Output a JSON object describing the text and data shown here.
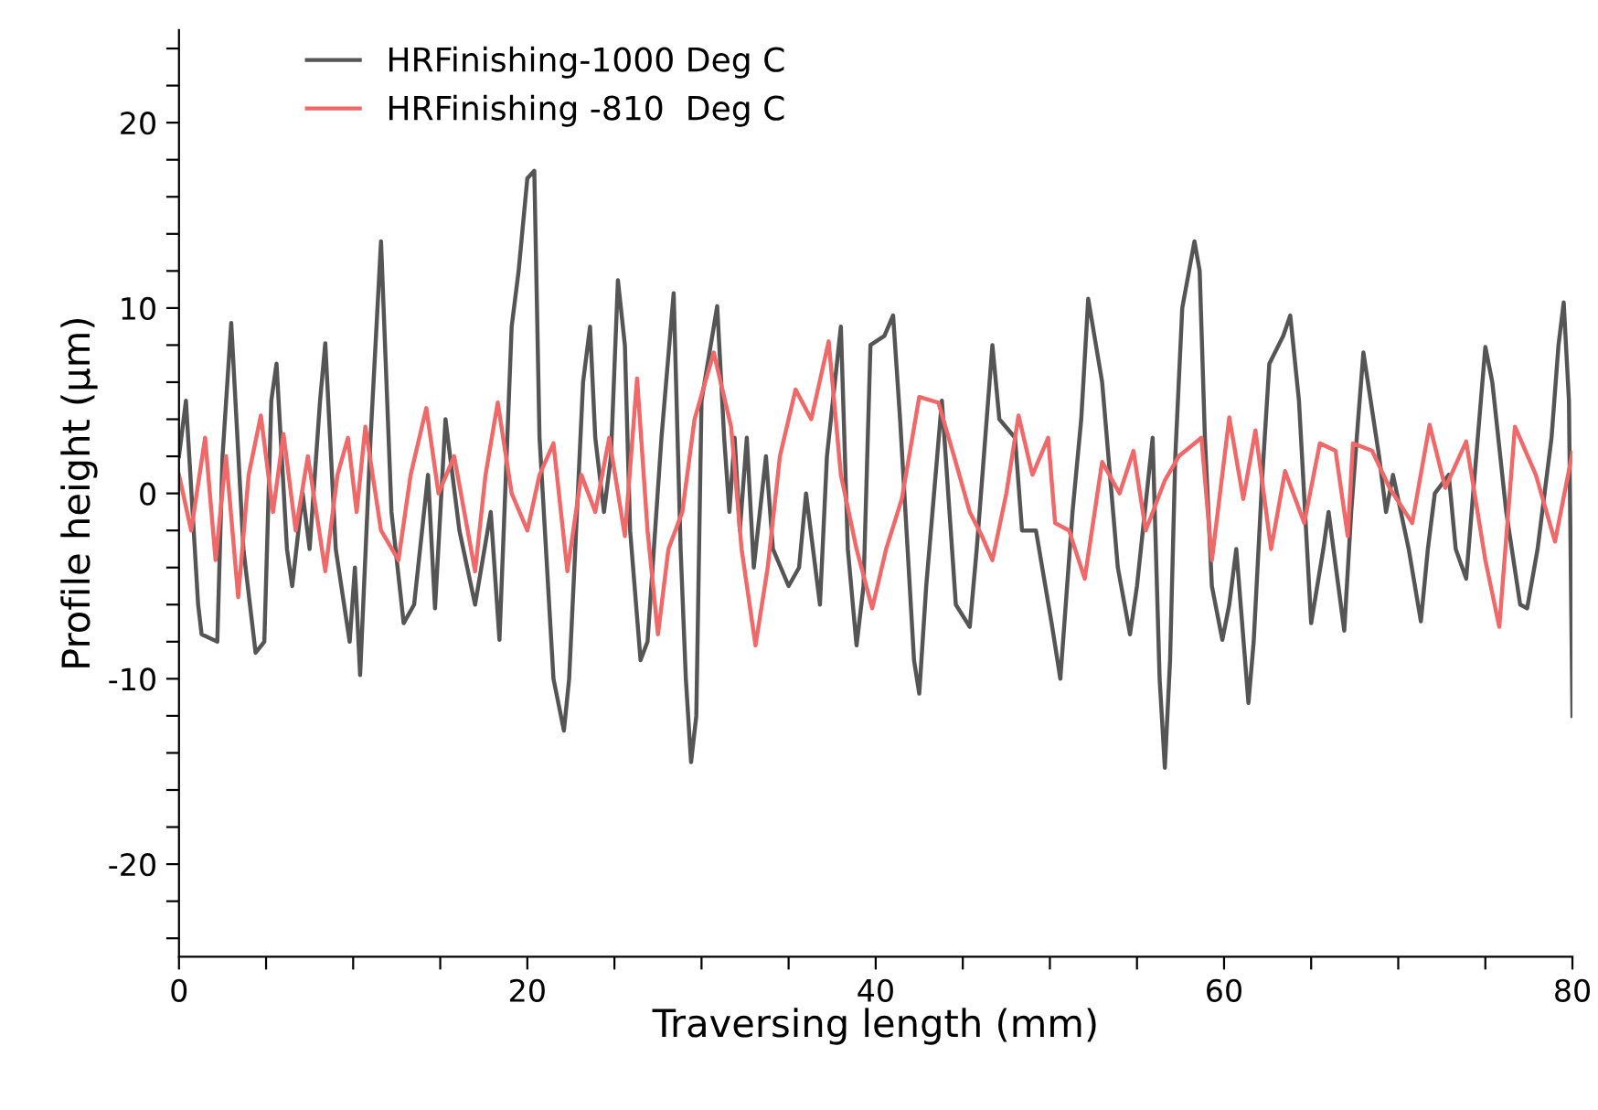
{
  "chart_data": {
    "type": "line",
    "xlabel": "Traversing length (mm)",
    "ylabel": "Profile height (µm)",
    "xlim": [
      0,
      80
    ],
    "ylim": [
      -25,
      25
    ],
    "xticks": [
      0,
      {
        "value": 5,
        "label": null
      },
      {
        "value": 10,
        "label": null
      },
      {
        "value": 15,
        "label": null
      },
      20,
      {
        "value": 25,
        "label": null
      },
      {
        "value": 30,
        "label": null
      },
      {
        "value": 35,
        "label": null
      },
      40,
      {
        "value": 45,
        "label": null
      },
      {
        "value": 50,
        "label": null
      },
      {
        "value": 55,
        "label": null
      },
      60,
      {
        "value": 65,
        "label": null
      },
      {
        "value": 70,
        "label": null
      },
      {
        "value": 75,
        "label": null
      },
      80
    ],
    "yticks": [
      {
        "value": -24,
        "label": null
      },
      {
        "value": -22,
        "label": null
      },
      -20,
      {
        "value": -18,
        "label": null
      },
      {
        "value": -16,
        "label": null
      },
      {
        "value": -14,
        "label": null
      },
      {
        "value": -12,
        "label": null
      },
      -10,
      {
        "value": -8,
        "label": null
      },
      {
        "value": -6,
        "label": null
      },
      {
        "value": -4,
        "label": null
      },
      {
        "value": -2,
        "label": null
      },
      0,
      {
        "value": 2,
        "label": null
      },
      {
        "value": 4,
        "label": null
      },
      {
        "value": 6,
        "label": null
      },
      {
        "value": 8,
        "label": null
      },
      10,
      {
        "value": 12,
        "label": null
      },
      {
        "value": 14,
        "label": null
      },
      {
        "value": 16,
        "label": null
      },
      {
        "value": 18,
        "label": null
      },
      20,
      {
        "value": 22,
        "label": null
      },
      {
        "value": 24,
        "label": null
      }
    ],
    "grid": false,
    "legend": "top left",
    "marker": "none",
    "line_style": "solid",
    "series": [
      {
        "name": "HRFinishing-1000 Deg C",
        "color": "#555555",
        "x": [
          0.0,
          0.4,
          1.1,
          1.3,
          2.2,
          2.5,
          3.0,
          3.7,
          4.4,
          4.9,
          5.3,
          5.6,
          6.2,
          6.5,
          7.1,
          7.5,
          8.1,
          8.4,
          9.0,
          9.8,
          10.1,
          10.4,
          11.0,
          11.6,
          12.2,
          12.9,
          13.5,
          14.3,
          14.7,
          15.3,
          16.1,
          17.0,
          17.9,
          18.4,
          19.1,
          19.5,
          20.0,
          20.4,
          20.7,
          21.5,
          22.1,
          22.4,
          23.2,
          23.6,
          23.9,
          24.4,
          24.8,
          25.2,
          25.6,
          25.9,
          26.5,
          26.9,
          27.7,
          28.4,
          28.8,
          29.1,
          29.4,
          29.7,
          30.0,
          30.9,
          31.3,
          31.6,
          31.9,
          32.2,
          32.6,
          33.0,
          33.7,
          34.1,
          35.0,
          35.6,
          36.0,
          36.8,
          37.2,
          38.0,
          38.4,
          38.9,
          39.3,
          39.7,
          40.5,
          41.0,
          41.4,
          42.2,
          42.5,
          42.9,
          43.8,
          44.6,
          45.4,
          45.8,
          46.7,
          47.1,
          48.0,
          48.4,
          49.2,
          50.1,
          50.6,
          51.3,
          51.8,
          52.2,
          53.0,
          53.9,
          54.6,
          55.0,
          55.9,
          56.3,
          56.6,
          56.9,
          57.2,
          57.6,
          58.3,
          58.6,
          58.9,
          59.3,
          59.9,
          60.3,
          60.7,
          61.4,
          61.7,
          62.2,
          62.6,
          63.4,
          63.8,
          64.3,
          65.0,
          65.7,
          66.0,
          66.9,
          67.3,
          67.7,
          68.0,
          68.9,
          69.3,
          69.7,
          70.6,
          71.3,
          71.7,
          72.1,
          72.9,
          73.3,
          73.9,
          74.3,
          75.0,
          75.4,
          76.2,
          77.0,
          77.4,
          78.0,
          78.8,
          79.2,
          79.5,
          79.8,
          80.0
        ],
        "values": [
          2,
          5,
          -6,
          -7.6,
          -8,
          2,
          9.2,
          -3,
          -8.6,
          -8,
          5,
          7,
          -3,
          -5,
          0,
          -3,
          5,
          8.1,
          -3,
          -8,
          -4,
          -9.8,
          3,
          13.6,
          -1,
          -7,
          -6,
          1,
          -6.2,
          4,
          -2,
          -6,
          -1,
          -7.9,
          9,
          12,
          17,
          17.4,
          3,
          -10,
          -12.8,
          -10,
          6,
          9,
          3,
          -1,
          2,
          11.5,
          8,
          -2,
          -9,
          -8,
          3,
          10.8,
          -3,
          -10,
          -14.5,
          -12,
          5,
          10.1,
          3,
          -1,
          3,
          -2,
          3,
          -4,
          2,
          -3,
          -5,
          -4,
          0,
          -6,
          2,
          9,
          -3,
          -8.2,
          -5,
          8,
          8.5,
          9.6,
          4,
          -9,
          -10.8,
          -5,
          5,
          -6,
          -7.2,
          -3,
          8,
          4,
          3,
          -2,
          -2,
          -7,
          -10,
          -1,
          4,
          10.5,
          6,
          -4,
          -7.6,
          -5,
          3,
          -10,
          -14.8,
          -9,
          2,
          10,
          13.6,
          12,
          3,
          -5,
          -7.9,
          -6,
          -3,
          -11.3,
          -8,
          1,
          7,
          8.5,
          9.6,
          5,
          -7,
          -3,
          -1,
          -7.4,
          -1,
          4,
          7.6,
          2,
          -1,
          1,
          -3,
          -6.9,
          -3,
          0,
          1,
          -3,
          -4.6,
          0,
          7.9,
          6,
          -1,
          -6,
          -6.2,
          -3,
          3,
          8,
          10.3,
          5,
          -12
        ]
      },
      {
        "name": "HRFinishing -810  Deg C",
        "color": "#f06868",
        "x": [
          0.0,
          0.7,
          1.5,
          2.1,
          2.7,
          3.4,
          4.0,
          4.7,
          5.4,
          6.0,
          6.7,
          7.4,
          8.4,
          9.1,
          9.7,
          10.2,
          10.7,
          11.6,
          12.6,
          13.3,
          14.2,
          14.9,
          15.8,
          17.0,
          17.6,
          18.3,
          19.1,
          20.0,
          20.7,
          21.5,
          22.3,
          23.1,
          23.9,
          24.7,
          25.6,
          26.3,
          26.9,
          27.5,
          28.1,
          28.9,
          29.6,
          30.7,
          31.7,
          32.3,
          33.1,
          33.8,
          34.5,
          35.4,
          36.3,
          37.3,
          38.0,
          38.9,
          39.8,
          40.6,
          41.5,
          42.5,
          43.6,
          44.5,
          45.4,
          46.1,
          46.7,
          47.5,
          48.2,
          49.0,
          49.9,
          50.3,
          51.1,
          52.0,
          53.0,
          54.0,
          54.8,
          55.5,
          56.6,
          57.4,
          58.7,
          59.3,
          60.3,
          61.1,
          61.8,
          62.7,
          63.5,
          64.6,
          65.5,
          66.4,
          67.1,
          67.4,
          68.5,
          69.5,
          70.8,
          71.8,
          72.7,
          73.9,
          75.0,
          75.8,
          76.7,
          77.9,
          79.0,
          80.0
        ],
        "values": [
          1,
          -2,
          3,
          -3.6,
          2,
          -5.6,
          1,
          4.2,
          -1,
          3.2,
          -2,
          2,
          -4.2,
          1,
          3,
          -1,
          3.6,
          -2,
          -3.6,
          1,
          4.6,
          0,
          2,
          -4.2,
          1,
          4.9,
          0,
          -2,
          1,
          2.7,
          -4.2,
          1,
          -1,
          3,
          -2.3,
          6.2,
          -2,
          -7.6,
          -3,
          -1,
          4,
          7.6,
          3.6,
          -3,
          -8.2,
          -4,
          2,
          5.6,
          4,
          8.2,
          1,
          -3,
          -6.2,
          -3,
          -0.3,
          5.2,
          4.9,
          2,
          -1,
          -2.3,
          -3.6,
          0,
          4.2,
          1,
          3,
          -1.6,
          -2,
          -4.6,
          1.7,
          0,
          2.3,
          -2,
          0.7,
          2,
          3,
          -3.6,
          4.1,
          -0.3,
          3.4,
          -3,
          1.2,
          -1.6,
          2.7,
          2.3,
          -2.3,
          2.7,
          2.3,
          0.3,
          -1.6,
          3.7,
          0.3,
          2.8,
          -3.6,
          -7.2,
          3.6,
          1,
          -2.6,
          2.2
        ]
      }
    ]
  }
}
